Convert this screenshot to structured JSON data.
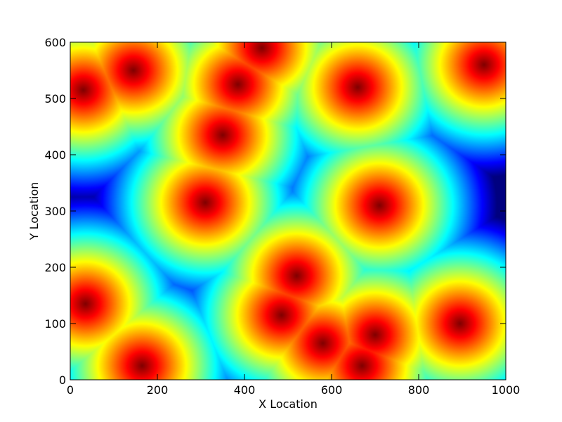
{
  "chart_data": {
    "type": "heatmap",
    "title": "",
    "xlabel": "X Location",
    "ylabel": "Y Location",
    "xlim": [
      0,
      1000
    ],
    "ylim": [
      0,
      600
    ],
    "xticks": [
      0,
      200,
      400,
      600,
      800,
      1000
    ],
    "yticks": [
      0,
      100,
      200,
      300,
      400,
      500,
      600
    ],
    "xtick_labels": [
      "0",
      "200",
      "400",
      "600",
      "800",
      "1000"
    ],
    "ytick_labels": [
      "0",
      "100",
      "200",
      "300",
      "400",
      "500",
      "600"
    ],
    "colormap": "jet",
    "grid": false,
    "legend": "none",
    "description_of_field": "value = distance to nearest hotspot, reversed jet colormap (red = near, blue = far)",
    "hotspots": [
      {
        "x": 30,
        "y": 515
      },
      {
        "x": 145,
        "y": 550
      },
      {
        "x": 385,
        "y": 525
      },
      {
        "x": 440,
        "y": 590
      },
      {
        "x": 350,
        "y": 435
      },
      {
        "x": 310,
        "y": 315
      },
      {
        "x": 660,
        "y": 520
      },
      {
        "x": 950,
        "y": 560
      },
      {
        "x": 710,
        "y": 310
      },
      {
        "x": 35,
        "y": 135
      },
      {
        "x": 165,
        "y": 25
      },
      {
        "x": 520,
        "y": 185
      },
      {
        "x": 485,
        "y": 115
      },
      {
        "x": 580,
        "y": 65
      },
      {
        "x": 700,
        "y": 80
      },
      {
        "x": 670,
        "y": 25
      },
      {
        "x": 895,
        "y": 100
      }
    ],
    "max_distance": 200
  }
}
